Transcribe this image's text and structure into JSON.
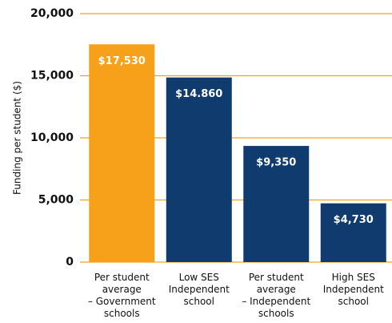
{
  "chart_data": {
    "type": "bar",
    "y_label": "Funding per student ($)",
    "categories": [
      "Per student\naverage\n– Government\nschools",
      "Low SES\nIndependent\nschool",
      "Per student\naverage\n– Independent\nschools",
      "High SES\nIndependent\nschool"
    ],
    "values": [
      17530,
      14860,
      9350,
      4730
    ],
    "value_labels": [
      "$17,530",
      "$14.860",
      "$9,350",
      "$4,730"
    ],
    "colors": [
      "#f7a11a",
      "#0f3b6e",
      "#0f3b6e",
      "#0f3b6e"
    ],
    "grid_color": "#f7a11a",
    "ylim": [
      0,
      20000
    ],
    "yticks": [
      0,
      {
        "value": 5000,
        "label": "5,000"
      },
      {
        "value": 10000,
        "label": "10,000"
      },
      {
        "value": 15000,
        "label": "15,000"
      },
      {
        "value": 20000,
        "label": "20,000"
      }
    ],
    "grid": true
  }
}
